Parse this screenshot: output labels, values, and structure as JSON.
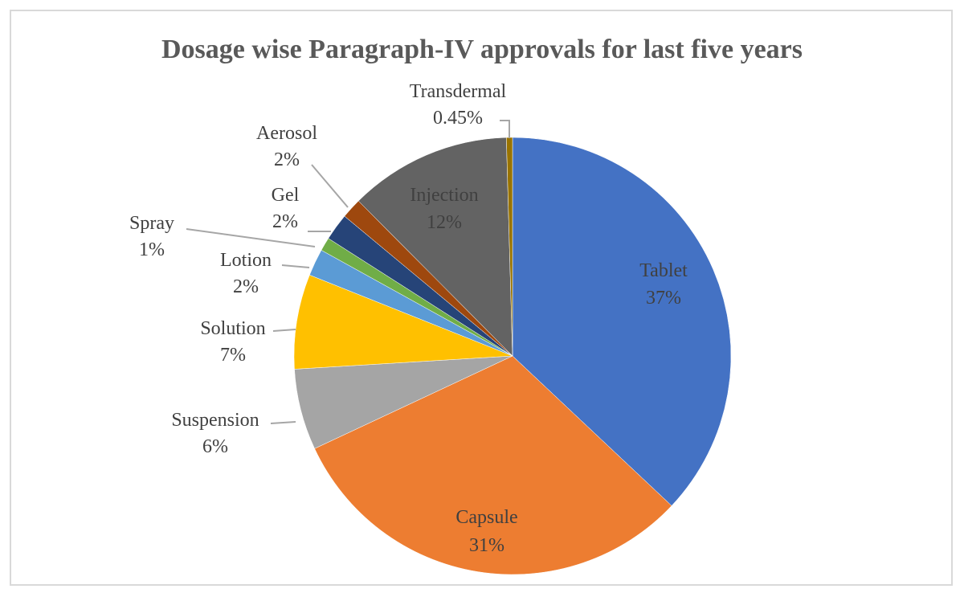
{
  "chart_data": {
    "type": "pie",
    "title": "Dosage wise Paragraph-IV approvals for last  five years",
    "slices": [
      {
        "name": "Tablet",
        "value": 37.0,
        "value_label": "37%",
        "color": "#4472C4"
      },
      {
        "name": "Capsule",
        "value": 31.0,
        "value_label": "31%",
        "color": "#ED7D31"
      },
      {
        "name": "Suspension",
        "value": 6.0,
        "value_label": "6%",
        "color": "#A5A5A5"
      },
      {
        "name": "Solution",
        "value": 7.0,
        "value_label": "7%",
        "color": "#FFC000"
      },
      {
        "name": "Lotion",
        "value": 2.0,
        "value_label": "2%",
        "color": "#5B9BD5"
      },
      {
        "name": "Spray",
        "value": 1.0,
        "value_label": "1%",
        "color": "#70AD47"
      },
      {
        "name": "Gel",
        "value": 2.0,
        "value_label": "2%",
        "color": "#264478"
      },
      {
        "name": "Aerosol",
        "value": 1.5,
        "value_label": "2%",
        "color": "#9E480E"
      },
      {
        "name": "Injection",
        "value": 12.0,
        "value_label": "12%",
        "color": "#636363"
      },
      {
        "name": "Transdermal",
        "value": 0.45,
        "value_label": "0.45%",
        "color": "#997300"
      }
    ],
    "legend": "none",
    "data_labels": "category name and percentage"
  }
}
